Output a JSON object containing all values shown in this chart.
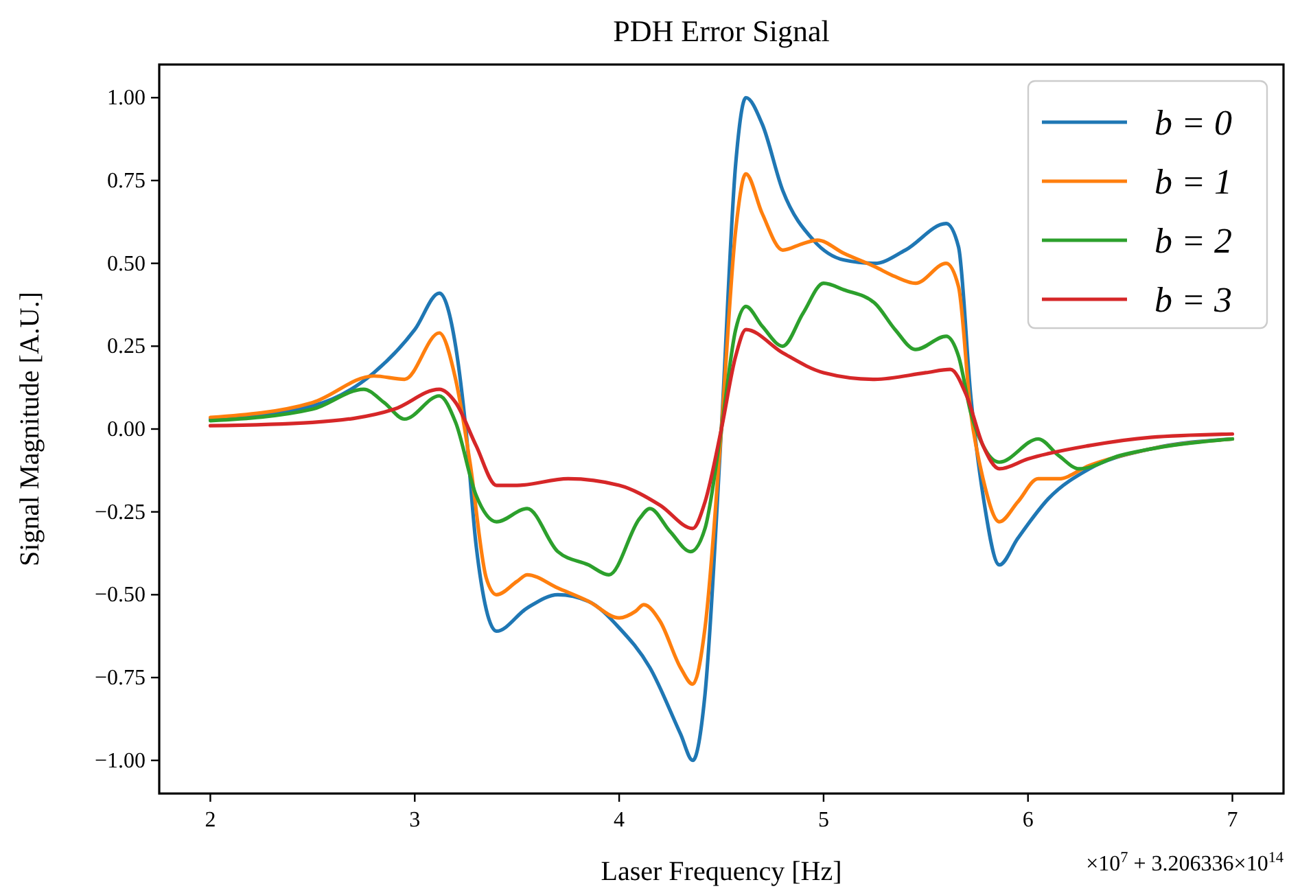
{
  "chart_data": {
    "type": "line",
    "title": "PDH Error Signal",
    "xlabel": "Laser Frequency [Hz]",
    "ylabel": "Signal Magnitude [A.U.]",
    "annotations": [
      "×10$^{7}$ + 3.206336×10$^{14}$"
    ],
    "xlim": [
      1.75,
      7.25
    ],
    "xticks": [
      2,
      3,
      4,
      5,
      6,
      7
    ],
    "ylim": [
      -1.1,
      1.1
    ],
    "yticks": [
      {
        "value": -1,
        "label": "−1.00"
      },
      {
        "value": -0.75,
        "label": "−0.75"
      },
      {
        "value": -0.5,
        "label": "−0.50"
      },
      {
        "value": -0.25,
        "label": "−0.25"
      },
      {
        "value": 0,
        "label": "0.00"
      },
      {
        "value": 0.25,
        "label": "0.25"
      },
      {
        "value": 0.5,
        "label": "0.50"
      },
      {
        "value": 0.75,
        "label": "0.75"
      },
      {
        "value": 1,
        "label": "1.00"
      }
    ],
    "grid": false,
    "legend": "top right",
    "marker": "none",
    "line_style": "solid",
    "series": [
      {
        "name": "b = 0",
        "color": "#1f77b4",
        "x": [
          2,
          2.5,
          2.8,
          3,
          3.12,
          3.2,
          3.25,
          3.3,
          3.4,
          3.55,
          3.7,
          3.85,
          4,
          4.15,
          4.3,
          4.36,
          4.42,
          4.5,
          4.57,
          4.62,
          4.7,
          4.8,
          4.95,
          5.1,
          5.25,
          5.4,
          5.6,
          5.66,
          5.72,
          5.78,
          5.86,
          5.95,
          6.1,
          6.3,
          6.6,
          7
        ],
        "values": [
          0.03,
          0.07,
          0.17,
          0.3,
          0.41,
          0.25,
          0,
          -0.35,
          -0.61,
          -0.54,
          -0.5,
          -0.52,
          -0.6,
          -0.72,
          -0.92,
          -1,
          -0.8,
          0,
          0.8,
          1,
          0.92,
          0.72,
          0.57,
          0.51,
          0.5,
          0.54,
          0.62,
          0.55,
          0.1,
          -0.2,
          -0.41,
          -0.33,
          -0.21,
          -0.12,
          -0.06,
          -0.03
        ]
      },
      {
        "name": "b = 1",
        "color": "#ff7f0e",
        "x": [
          2,
          2.5,
          2.8,
          2.95,
          3.12,
          3.2,
          3.27,
          3.35,
          3.4,
          3.5,
          3.55,
          3.7,
          3.85,
          4,
          4.08,
          4.12,
          4.2,
          4.3,
          4.36,
          4.42,
          4.5,
          4.57,
          4.62,
          4.7,
          4.8,
          4.9,
          4.97,
          5.1,
          5.25,
          5.35,
          5.45,
          5.6,
          5.66,
          5.72,
          5.78,
          5.86,
          5.95,
          6.05,
          6.15,
          6.3,
          6.6,
          7
        ],
        "values": [
          0.035,
          0.08,
          0.16,
          0.15,
          0.29,
          0.15,
          -0.1,
          -0.45,
          -0.5,
          -0.46,
          -0.44,
          -0.48,
          -0.52,
          -0.57,
          -0.55,
          -0.53,
          -0.58,
          -0.72,
          -0.77,
          -0.6,
          0,
          0.6,
          0.77,
          0.65,
          0.54,
          0.56,
          0.57,
          0.53,
          0.49,
          0.46,
          0.44,
          0.5,
          0.43,
          0.05,
          -0.15,
          -0.28,
          -0.22,
          -0.15,
          -0.15,
          -0.11,
          -0.06,
          -0.03
        ]
      },
      {
        "name": "b = 2",
        "color": "#2ca02c",
        "x": [
          2,
          2.5,
          2.75,
          2.85,
          2.95,
          3.12,
          3.2,
          3.3,
          3.4,
          3.55,
          3.7,
          3.85,
          3.95,
          4.1,
          4.15,
          4.25,
          4.35,
          4.42,
          4.5,
          4.57,
          4.62,
          4.7,
          4.8,
          4.9,
          5,
          5.1,
          5.25,
          5.35,
          5.45,
          5.6,
          5.66,
          5.72,
          5.78,
          5.86,
          6.05,
          6.15,
          6.25,
          6.45,
          6.7,
          7
        ],
        "values": [
          0.025,
          0.06,
          0.12,
          0.08,
          0.03,
          0.1,
          0.02,
          -0.2,
          -0.28,
          -0.24,
          -0.37,
          -0.41,
          -0.44,
          -0.27,
          -0.24,
          -0.31,
          -0.37,
          -0.3,
          0,
          0.3,
          0.37,
          0.31,
          0.25,
          0.35,
          0.44,
          0.42,
          0.38,
          0.3,
          0.24,
          0.28,
          0.22,
          0.05,
          -0.05,
          -0.1,
          -0.03,
          -0.08,
          -0.12,
          -0.08,
          -0.05,
          -0.03
        ]
      },
      {
        "name": "b = 3",
        "color": "#d62728",
        "x": [
          2,
          2.5,
          2.9,
          3.12,
          3.2,
          3.3,
          3.4,
          3.5,
          3.75,
          4,
          4.2,
          4.36,
          4.42,
          4.5,
          4.57,
          4.62,
          4.8,
          5,
          5.25,
          5.5,
          5.62,
          5.7,
          5.78,
          5.86,
          6,
          6.3,
          6.6,
          7
        ],
        "values": [
          0.01,
          0.02,
          0.06,
          0.12,
          0.08,
          -0.05,
          -0.17,
          -0.17,
          -0.15,
          -0.17,
          -0.23,
          -0.3,
          -0.22,
          0,
          0.22,
          0.3,
          0.23,
          0.17,
          0.15,
          0.17,
          0.18,
          0.1,
          -0.05,
          -0.12,
          -0.09,
          -0.05,
          -0.025,
          -0.015
        ]
      }
    ]
  }
}
